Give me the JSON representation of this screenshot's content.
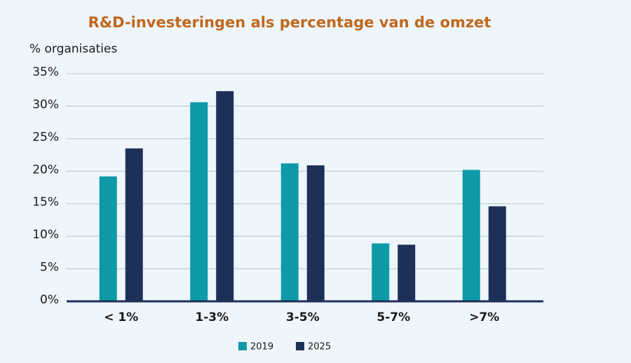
{
  "chart_data": {
    "type": "bar",
    "title": "R&D-investeringen als percentage van de omzet",
    "y_label": "% organisaties",
    "categories": [
      "< 1%",
      "1-3%",
      "3-5%",
      "5-7%",
      ">7%"
    ],
    "series": [
      {
        "name": "2019",
        "color": "#0e9aa7",
        "values": [
          19.2,
          30.6,
          21.2,
          8.9,
          20.2
        ]
      },
      {
        "name": "2025",
        "color": "#1f3058",
        "values": [
          23.5,
          32.3,
          20.9,
          8.7,
          14.6
        ]
      }
    ],
    "ylim": [
      0,
      35
    ],
    "yticks": [
      {
        "value": 0,
        "label": "0%"
      },
      {
        "value": 5,
        "label": "5%"
      },
      {
        "value": 10,
        "label": "10%"
      },
      {
        "value": 15,
        "label": "15%"
      },
      {
        "value": 20,
        "label": "20%"
      },
      {
        "value": 25,
        "label": "25%"
      },
      {
        "value": 30,
        "label": "30%"
      },
      {
        "value": 35,
        "label": "35%"
      }
    ],
    "grid": true
  }
}
